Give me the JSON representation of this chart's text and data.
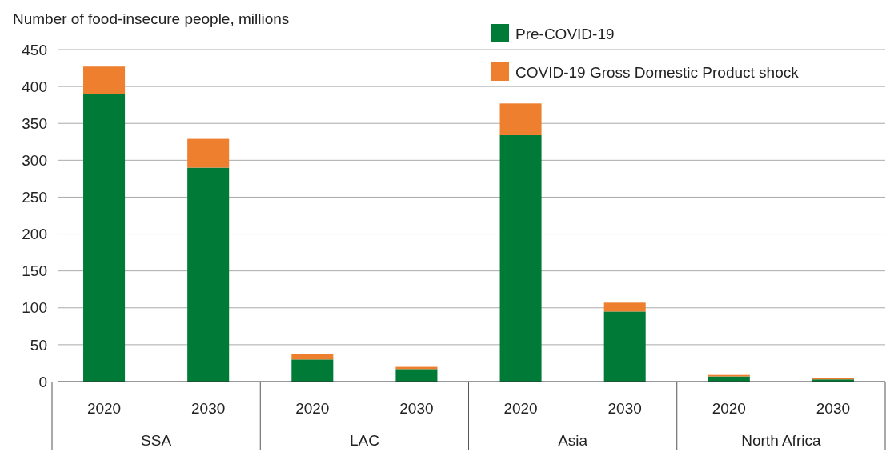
{
  "chart_data": {
    "type": "bar",
    "stacked": true,
    "ylabel": "Number of food-insecure people, millions",
    "categories": [
      "2020",
      "2030",
      "2020",
      "2030",
      "2020",
      "2030",
      "2020",
      "2030"
    ],
    "annotations": [
      "SSA",
      "LAC",
      "Asia",
      "North Africa"
    ],
    "series": [
      {
        "name": "Pre-COVID-19",
        "color": "#007a37",
        "values": [
          390,
          290,
          30,
          17,
          334,
          95,
          7,
          3
        ]
      },
      {
        "name": "COVID-19 Gross Domestic Product shock",
        "color": "#ee7f2f",
        "values": [
          37,
          39,
          7,
          3,
          43,
          12,
          2,
          2
        ]
      }
    ],
    "ylim": [
      0,
      450
    ],
    "yticks": [
      0,
      50,
      100,
      150,
      200,
      250,
      300,
      350,
      400,
      450
    ],
    "grid": "y",
    "legend": "top right"
  }
}
